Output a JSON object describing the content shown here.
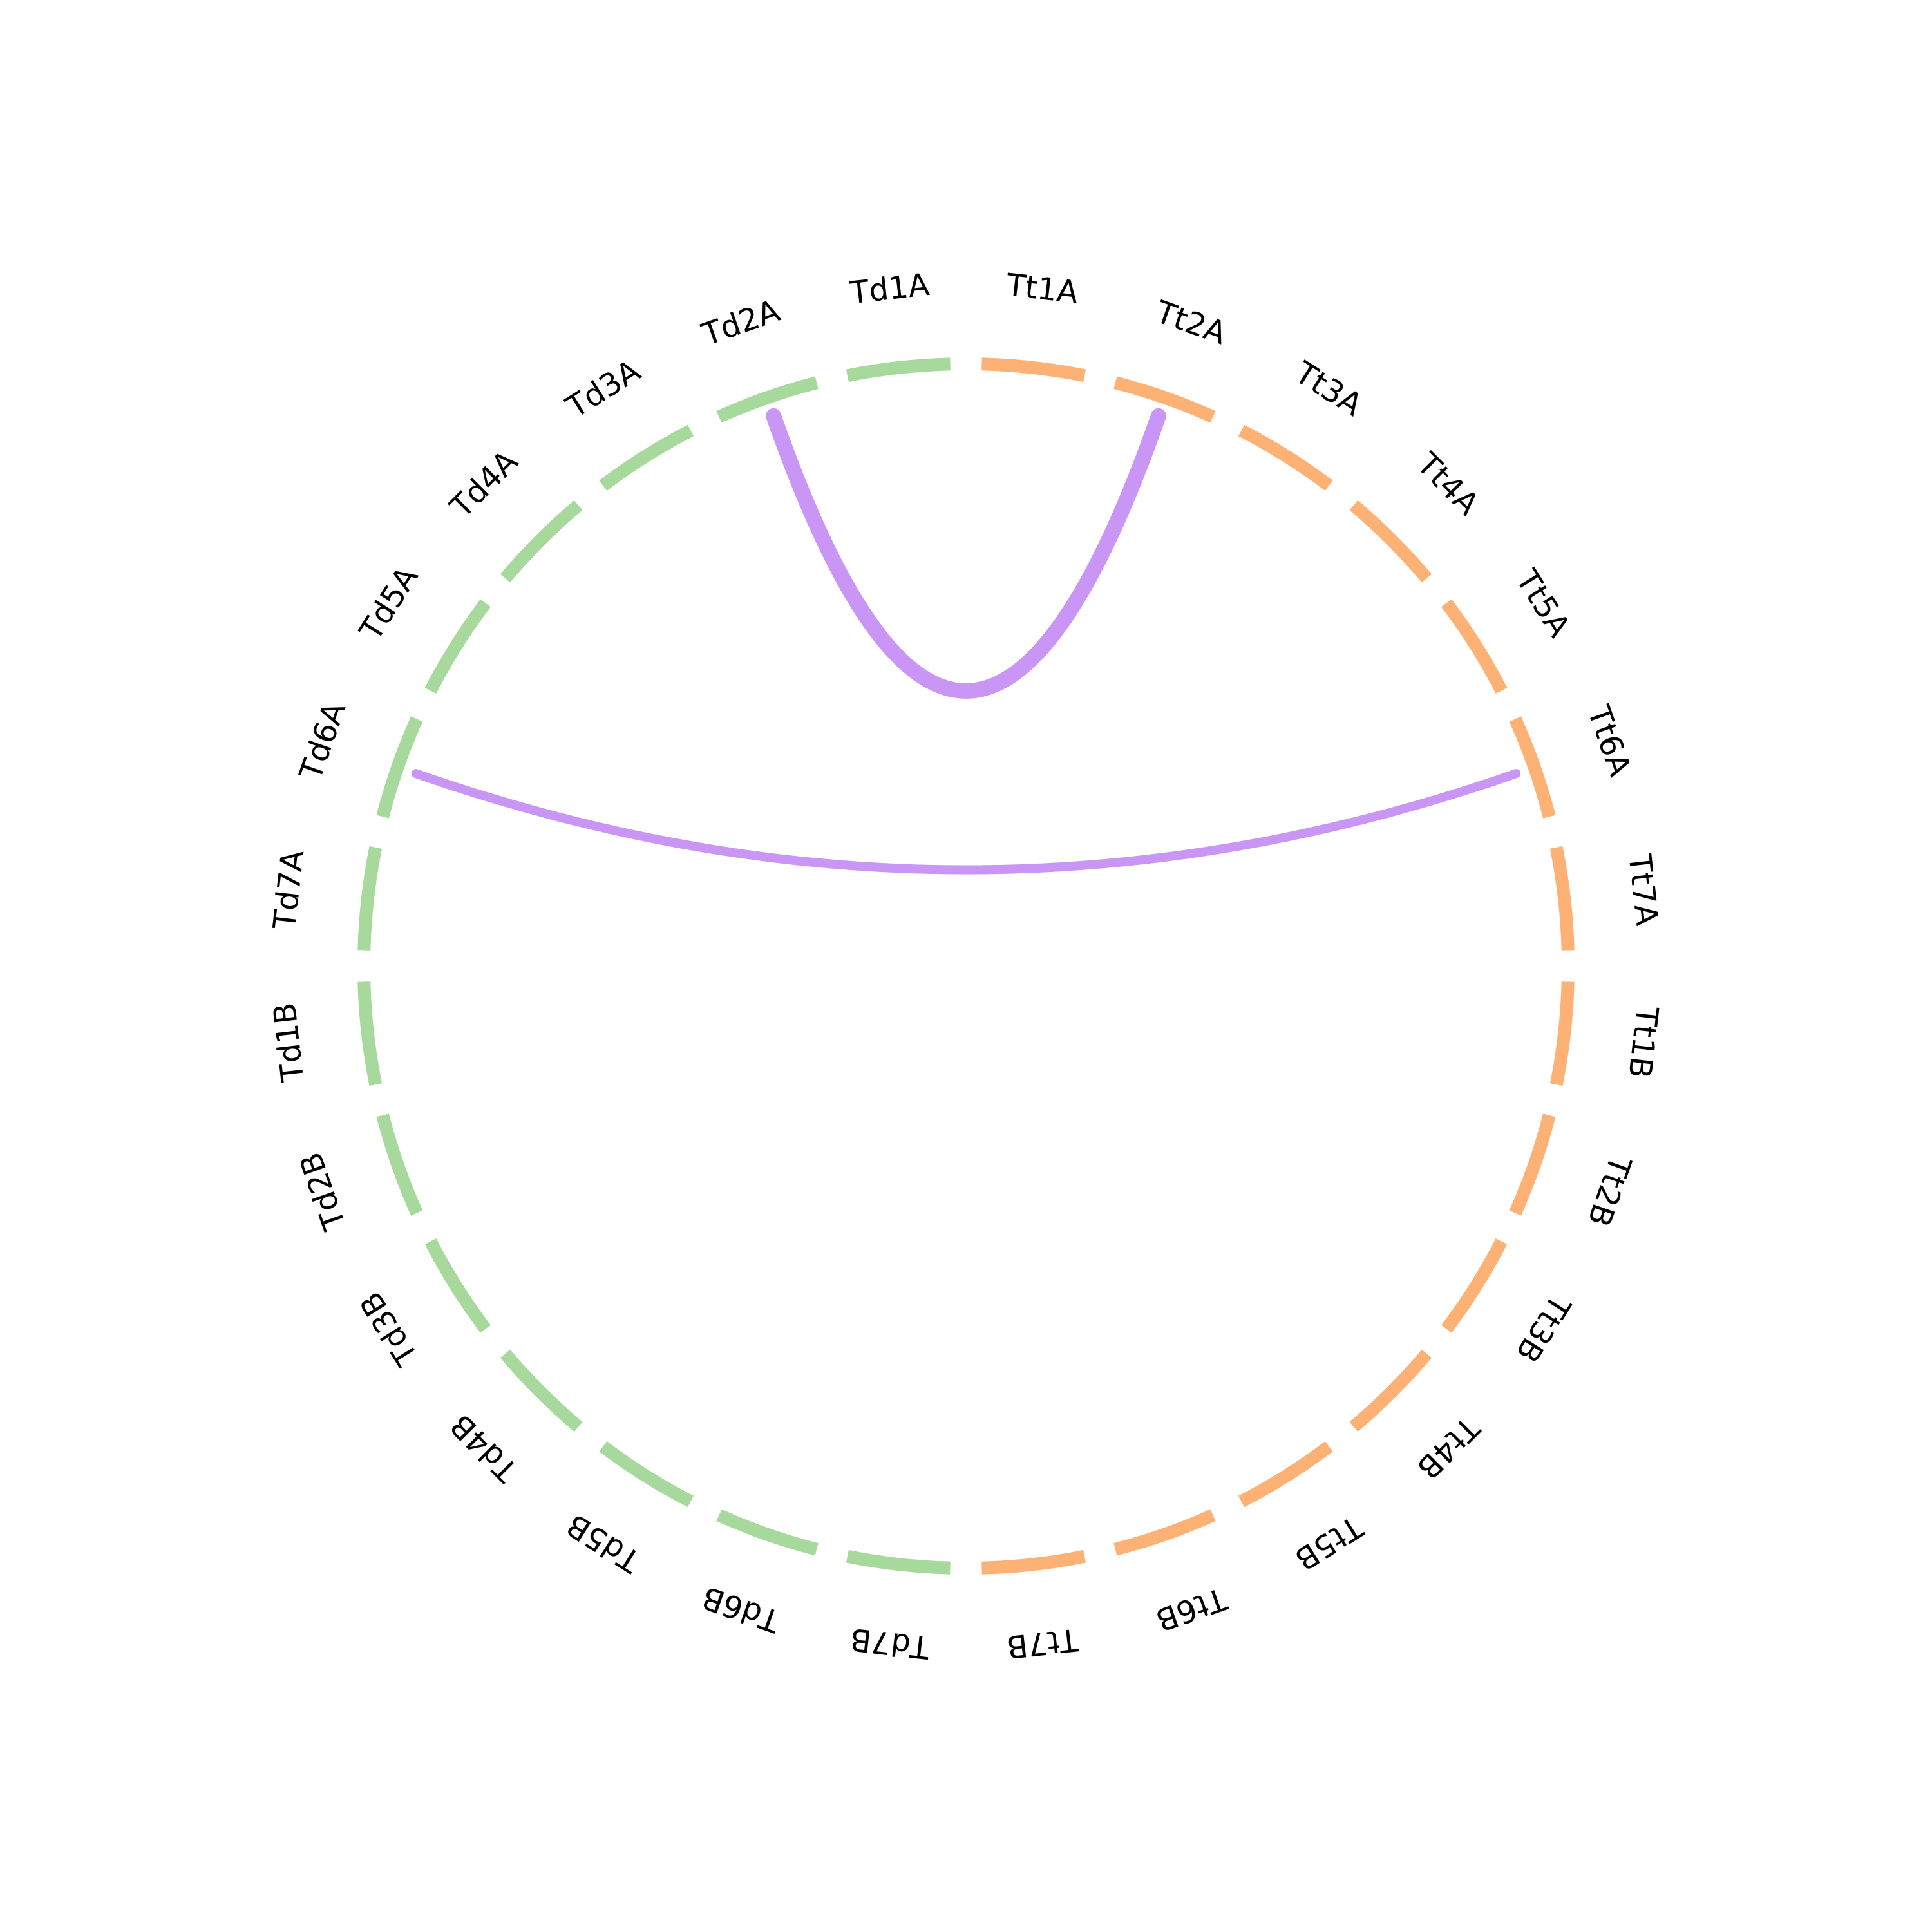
{
  "colors": {
    "group_Td": "#a6d99b",
    "group_Tt": "#fdb174",
    "link": "#c996f5"
  },
  "segments": [
    {
      "label": "Td1A",
      "group": "Td"
    },
    {
      "label": "Td2A",
      "group": "Td"
    },
    {
      "label": "Td3A",
      "group": "Td"
    },
    {
      "label": "Td4A",
      "group": "Td"
    },
    {
      "label": "Td5A",
      "group": "Td"
    },
    {
      "label": "Td6A",
      "group": "Td"
    },
    {
      "label": "Td7A",
      "group": "Td"
    },
    {
      "label": "Td1B",
      "group": "Td"
    },
    {
      "label": "Td2B",
      "group": "Td"
    },
    {
      "label": "Td3B",
      "group": "Td"
    },
    {
      "label": "Td4B",
      "group": "Td"
    },
    {
      "label": "Td5B",
      "group": "Td"
    },
    {
      "label": "Td6B",
      "group": "Td"
    },
    {
      "label": "Td7B",
      "group": "Td"
    },
    {
      "label": "Tt7B",
      "group": "Tt"
    },
    {
      "label": "Tt6B",
      "group": "Tt"
    },
    {
      "label": "Tt5B",
      "group": "Tt"
    },
    {
      "label": "Tt4B",
      "group": "Tt"
    },
    {
      "label": "Tt3B",
      "group": "Tt"
    },
    {
      "label": "Tt2B",
      "group": "Tt"
    },
    {
      "label": "Tt1B",
      "group": "Tt"
    },
    {
      "label": "Tt7A",
      "group": "Tt"
    },
    {
      "label": "Tt6A",
      "group": "Tt"
    },
    {
      "label": "Tt5A",
      "group": "Tt"
    },
    {
      "label": "Tt4A",
      "group": "Tt"
    },
    {
      "label": "Tt3A",
      "group": "Tt"
    },
    {
      "label": "Tt2A",
      "group": "Tt"
    },
    {
      "label": "Tt1A",
      "group": "Tt"
    }
  ],
  "links": [
    {
      "from": "Td2A",
      "to": "Tt2A",
      "weight": "thick"
    },
    {
      "from": "Td6A",
      "to": "Tt6A",
      "weight": "thin"
    }
  ]
}
